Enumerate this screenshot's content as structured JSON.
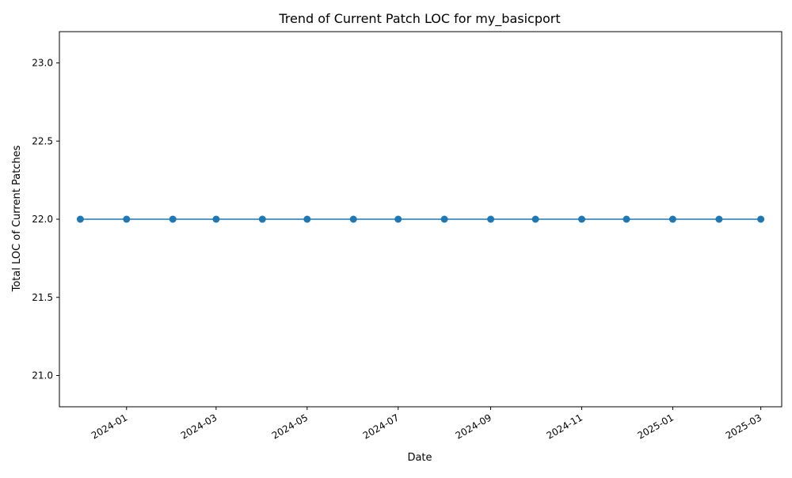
{
  "chart_data": {
    "type": "line",
    "title": "Trend of Current Patch LOC for my_basicport",
    "xlabel": "Date",
    "ylabel": "Total LOC of Current Patches",
    "x_ticks": [
      "2024-01",
      "2024-03",
      "2024-05",
      "2024-07",
      "2024-09",
      "2024-11",
      "2025-01",
      "2025-03"
    ],
    "y_ticks": [
      "21.0",
      "21.5",
      "22.0",
      "22.5",
      "23.0"
    ],
    "ylim": [
      20.8,
      23.2
    ],
    "xlim": [
      "2023-11-17",
      "2025-03-15"
    ],
    "grid": false,
    "legend": "none",
    "series": [
      {
        "color": "#1f77b4",
        "marker": "circle",
        "points": [
          {
            "x": "2023-12-01",
            "y": 22
          },
          {
            "x": "2024-01-01",
            "y": 22
          },
          {
            "x": "2024-02-01",
            "y": 22
          },
          {
            "x": "2024-03-01",
            "y": 22
          },
          {
            "x": "2024-04-01",
            "y": 22
          },
          {
            "x": "2024-05-01",
            "y": 22
          },
          {
            "x": "2024-06-01",
            "y": 22
          },
          {
            "x": "2024-07-01",
            "y": 22
          },
          {
            "x": "2024-08-01",
            "y": 22
          },
          {
            "x": "2024-09-01",
            "y": 22
          },
          {
            "x": "2024-10-01",
            "y": 22
          },
          {
            "x": "2024-11-01",
            "y": 22
          },
          {
            "x": "2024-12-01",
            "y": 22
          },
          {
            "x": "2025-01-01",
            "y": 22
          },
          {
            "x": "2025-02-01",
            "y": 22
          },
          {
            "x": "2025-03-01",
            "y": 22
          }
        ]
      }
    ]
  }
}
